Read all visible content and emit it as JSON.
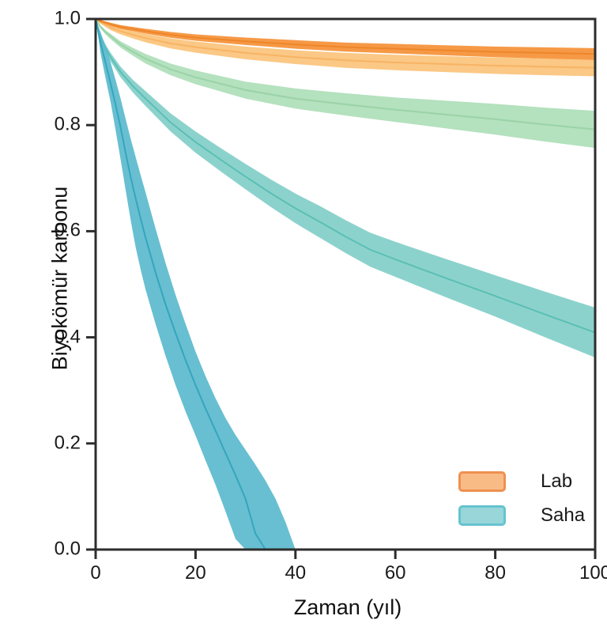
{
  "chart_data": {
    "type": "area",
    "title": "",
    "xlabel": "Zaman (yıl)",
    "ylabel": "Biyokömür karbonu",
    "xlim": [
      0,
      100
    ],
    "ylim": [
      0,
      1
    ],
    "grid": false,
    "axis_color": "#2d2d2d",
    "background": "#ffffff",
    "xticks": [
      {
        "v": 0,
        "label": "0"
      },
      {
        "v": 20,
        "label": "20"
      },
      {
        "v": 40,
        "label": "40"
      },
      {
        "v": 60,
        "label": "60"
      },
      {
        "v": 80,
        "label": "80"
      },
      {
        "v": 100,
        "label": "100"
      }
    ],
    "yticks": [
      {
        "v": 0.0,
        "label": "0.0"
      },
      {
        "v": 0.2,
        "label": "0.2"
      },
      {
        "v": 0.4,
        "label": "0.4"
      },
      {
        "v": 0.6,
        "label": "0.6"
      },
      {
        "v": 0.8,
        "label": "0.8"
      },
      {
        "v": 1.0,
        "label": "1.0"
      }
    ],
    "legend": {
      "position": "lower-right",
      "entries": [
        {
          "label": "Lab",
          "fill": "#F8BB86",
          "stroke": "#EF9050"
        },
        {
          "label": "Saha",
          "fill": "#98D6DA",
          "stroke": "#66C3CF"
        }
      ]
    },
    "series": [
      {
        "name": "lab-light-orange",
        "group": "Lab",
        "fill": "#FBC57E",
        "line": "#F6B160",
        "fill_opacity": 0.95,
        "t": [
          0,
          1,
          2,
          3,
          5,
          7.5,
          10,
          15,
          20,
          30,
          40,
          50,
          60,
          70,
          80,
          90,
          100
        ],
        "lo": [
          0.9985,
          0.991,
          0.985,
          0.979,
          0.971,
          0.963,
          0.956,
          0.9445,
          0.9365,
          0.924,
          0.915,
          0.908,
          0.9035,
          0.9,
          0.8965,
          0.894,
          0.892
        ],
        "mid": [
          1.0,
          0.994,
          0.989,
          0.984,
          0.977,
          0.97,
          0.964,
          0.954,
          0.947,
          0.936,
          0.928,
          0.922,
          0.918,
          0.915,
          0.912,
          0.91,
          0.908
        ],
        "hi": [
          1.0,
          0.997,
          0.993,
          0.989,
          0.983,
          0.977,
          0.972,
          0.9635,
          0.9575,
          0.948,
          0.941,
          0.936,
          0.9325,
          0.93,
          0.9275,
          0.926,
          0.924
        ]
      },
      {
        "name": "lab-dark-orange",
        "group": "Lab",
        "fill": "#F5943C",
        "line": "#ED8427",
        "fill_opacity": 0.95,
        "t": [
          0,
          1,
          2,
          3,
          5,
          7.5,
          10,
          15,
          20,
          30,
          40,
          50,
          60,
          70,
          80,
          90,
          100
        ],
        "lo": [
          0.9985,
          0.994,
          0.9905,
          0.987,
          0.9815,
          0.977,
          0.9725,
          0.9645,
          0.959,
          0.951,
          0.944,
          0.9385,
          0.935,
          0.9315,
          0.928,
          0.9255,
          0.923
        ],
        "mid": [
          1.0,
          0.996,
          0.993,
          0.99,
          0.985,
          0.981,
          0.977,
          0.97,
          0.965,
          0.958,
          0.952,
          0.947,
          0.944,
          0.941,
          0.938,
          0.936,
          0.934
        ],
        "hi": [
          1.0,
          0.998,
          0.9955,
          0.993,
          0.9885,
          0.985,
          0.9815,
          0.9755,
          0.971,
          0.965,
          0.96,
          0.9555,
          0.953,
          0.9505,
          0.948,
          0.9465,
          0.945
        ]
      },
      {
        "name": "green-band",
        "group": "Saha",
        "fill": "#B0DFBA",
        "line": "#97D2A4",
        "fill_opacity": 0.95,
        "t": [
          0,
          1,
          2,
          3,
          5,
          7.5,
          10,
          15,
          20,
          30,
          40,
          50,
          60,
          70,
          80,
          90,
          100
        ],
        "lo": [
          0.998,
          0.982,
          0.971,
          0.962,
          0.946,
          0.9305,
          0.916,
          0.894,
          0.877,
          0.85,
          0.831,
          0.818,
          0.806,
          0.794,
          0.782,
          0.769,
          0.757
        ],
        "mid": [
          1.0,
          0.985,
          0.975,
          0.967,
          0.952,
          0.938,
          0.925,
          0.905,
          0.89,
          0.866,
          0.85,
          0.839,
          0.829,
          0.82,
          0.811,
          0.801,
          0.792
        ],
        "hi": [
          1.0,
          0.988,
          0.979,
          0.972,
          0.958,
          0.9455,
          0.934,
          0.916,
          0.903,
          0.882,
          0.869,
          0.86,
          0.852,
          0.846,
          0.84,
          0.833,
          0.827
        ]
      },
      {
        "name": "saha-teal-slow",
        "group": "Saha",
        "fill": "#7FCDC7",
        "line": "#54BCB3",
        "fill_opacity": 0.9,
        "t": [
          0,
          1,
          2,
          3,
          5,
          7.5,
          10,
          15,
          20,
          25,
          30,
          35,
          40,
          45,
          50,
          55,
          60,
          70,
          80,
          90,
          100
        ],
        "lo": [
          0.997,
          0.959,
          0.938,
          0.92,
          0.89,
          0.861,
          0.836,
          0.788,
          0.748,
          0.713,
          0.679,
          0.646,
          0.615,
          0.587,
          0.559,
          0.533,
          0.514,
          0.476,
          0.439,
          0.4,
          0.362
        ],
        "mid": [
          1.0,
          0.965,
          0.945,
          0.928,
          0.9,
          0.873,
          0.85,
          0.805,
          0.768,
          0.735,
          0.703,
          0.672,
          0.643,
          0.617,
          0.59,
          0.565,
          0.547,
          0.512,
          0.478,
          0.443,
          0.409
        ],
        "hi": [
          1.0,
          0.971,
          0.952,
          0.936,
          0.91,
          0.885,
          0.864,
          0.822,
          0.788,
          0.757,
          0.727,
          0.698,
          0.671,
          0.647,
          0.621,
          0.597,
          0.58,
          0.548,
          0.517,
          0.486,
          0.456
        ]
      },
      {
        "name": "saha-teal-fast",
        "group": "Saha",
        "fill": "#5BBACD",
        "line": "#2FA3BA",
        "fill_opacity": 0.92,
        "t": [
          0,
          1,
          2,
          3,
          4,
          5,
          6,
          7,
          8,
          9,
          10,
          12,
          14,
          16,
          18,
          20,
          22,
          24,
          26,
          28,
          30,
          32,
          34,
          36,
          38,
          40
        ],
        "lo": [
          1.0,
          0.935,
          0.888,
          0.843,
          0.79,
          0.735,
          0.678,
          0.622,
          0.57,
          0.528,
          0.49,
          0.425,
          0.365,
          0.31,
          0.26,
          0.215,
          0.168,
          0.122,
          0.072,
          0.02,
          0,
          0,
          0,
          0,
          0,
          0
        ],
        "mid": [
          1.0,
          0.955,
          0.917,
          0.878,
          0.838,
          0.796,
          0.748,
          0.703,
          0.662,
          0.624,
          0.588,
          0.522,
          0.462,
          0.408,
          0.357,
          0.31,
          0.266,
          0.224,
          0.182,
          0.14,
          0.096,
          0.03,
          0,
          0,
          0,
          0
        ],
        "hi": [
          1.0,
          0.975,
          0.948,
          0.918,
          0.885,
          0.85,
          0.812,
          0.775,
          0.74,
          0.706,
          0.673,
          0.605,
          0.54,
          0.48,
          0.425,
          0.373,
          0.327,
          0.285,
          0.248,
          0.216,
          0.188,
          0.16,
          0.13,
          0.096,
          0.052,
          0
        ]
      }
    ]
  }
}
